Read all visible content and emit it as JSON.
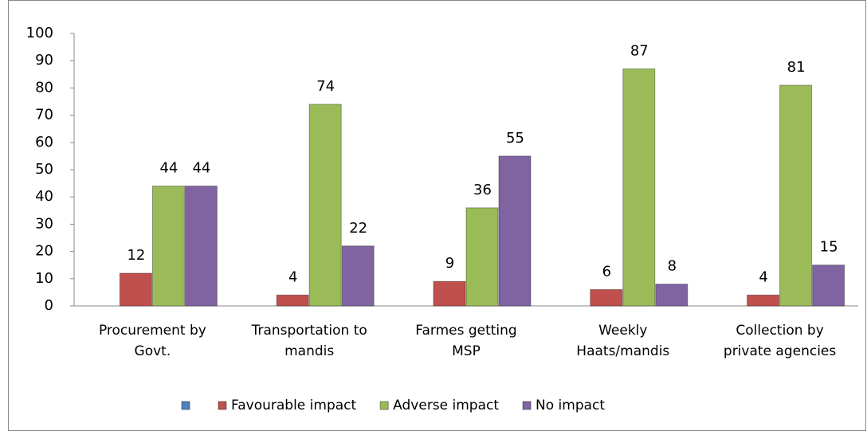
{
  "chart_data": {
    "type": "bar",
    "categories": [
      "Procurement by\nGovt.",
      "Transportation to\nmandis",
      "Farmes getting\nMSP",
      "Weekly\nHaats/mandis",
      "Collection by\nprivate agencies"
    ],
    "series": [
      {
        "color": "#4f81bd",
        "values": [
          null,
          null,
          null,
          null,
          null
        ]
      },
      {
        "name": "Favourable impact",
        "color": "#c0504d",
        "values": [
          12,
          4,
          9,
          6,
          4
        ]
      },
      {
        "name": "Adverse impact",
        "color": "#9bbb59",
        "values": [
          44,
          74,
          36,
          87,
          81
        ]
      },
      {
        "name": "No impact",
        "color": "#8064a2",
        "values": [
          44,
          22,
          55,
          8,
          15
        ]
      }
    ],
    "ylim": [
      0,
      100
    ],
    "yticks": [
      0,
      10,
      20,
      30,
      40,
      50,
      60,
      70,
      80,
      90,
      100
    ],
    "grid": false,
    "legend": "bottom"
  }
}
